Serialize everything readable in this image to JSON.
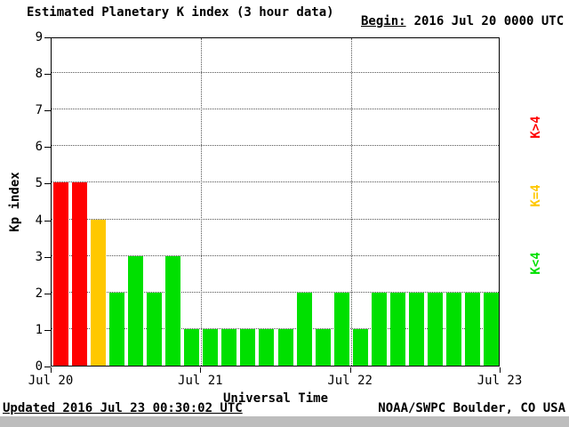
{
  "title": "Estimated Planetary K index (3 hour data)",
  "header": {
    "begin_label": "Begin:",
    "begin_value": "2016 Jul 20 0000 UTC"
  },
  "footer": {
    "updated": "Updated 2016 Jul 23 00:30:02 UTC",
    "source": "NOAA/SWPC Boulder, CO USA"
  },
  "colors": {
    "high": "#ff0000",
    "mid": "#ffc800",
    "low": "#00e000",
    "background": "#ffffff",
    "bottom_bar": "#bdbdbd"
  },
  "legend": [
    {
      "key": "k-gt-4",
      "label": "K>4",
      "color": "#ff0000"
    },
    {
      "key": "k-eq-4",
      "label": "K=4",
      "color": "#ffc800"
    },
    {
      "key": "k-lt-4",
      "label": "K<4",
      "color": "#00e000"
    }
  ],
  "chart_data": {
    "type": "bar",
    "title": "Estimated Planetary K index (3 hour data)",
    "xlabel": "Universal Time",
    "ylabel": "Kp index",
    "ylim": [
      0,
      9
    ],
    "yticks": [
      0,
      1,
      2,
      3,
      4,
      5,
      6,
      7,
      8,
      9
    ],
    "xticks": [
      "Jul 20",
      "Jul 21",
      "Jul 22",
      "Jul 23"
    ],
    "interval_hours": 3,
    "begin": "2016 Jul 20 0000 UTC",
    "values": [
      5,
      5,
      4,
      2,
      3,
      2,
      3,
      1,
      1,
      1,
      1,
      1,
      1,
      2,
      1,
      2,
      1,
      2,
      2,
      2,
      2,
      2,
      2,
      2
    ],
    "color_rule": "green for K<4, yellow for K=4, red for K>4",
    "grid": "dotted horizontal at each Kp integer, dotted vertical at day boundaries",
    "legend_position": "right, rotated"
  }
}
